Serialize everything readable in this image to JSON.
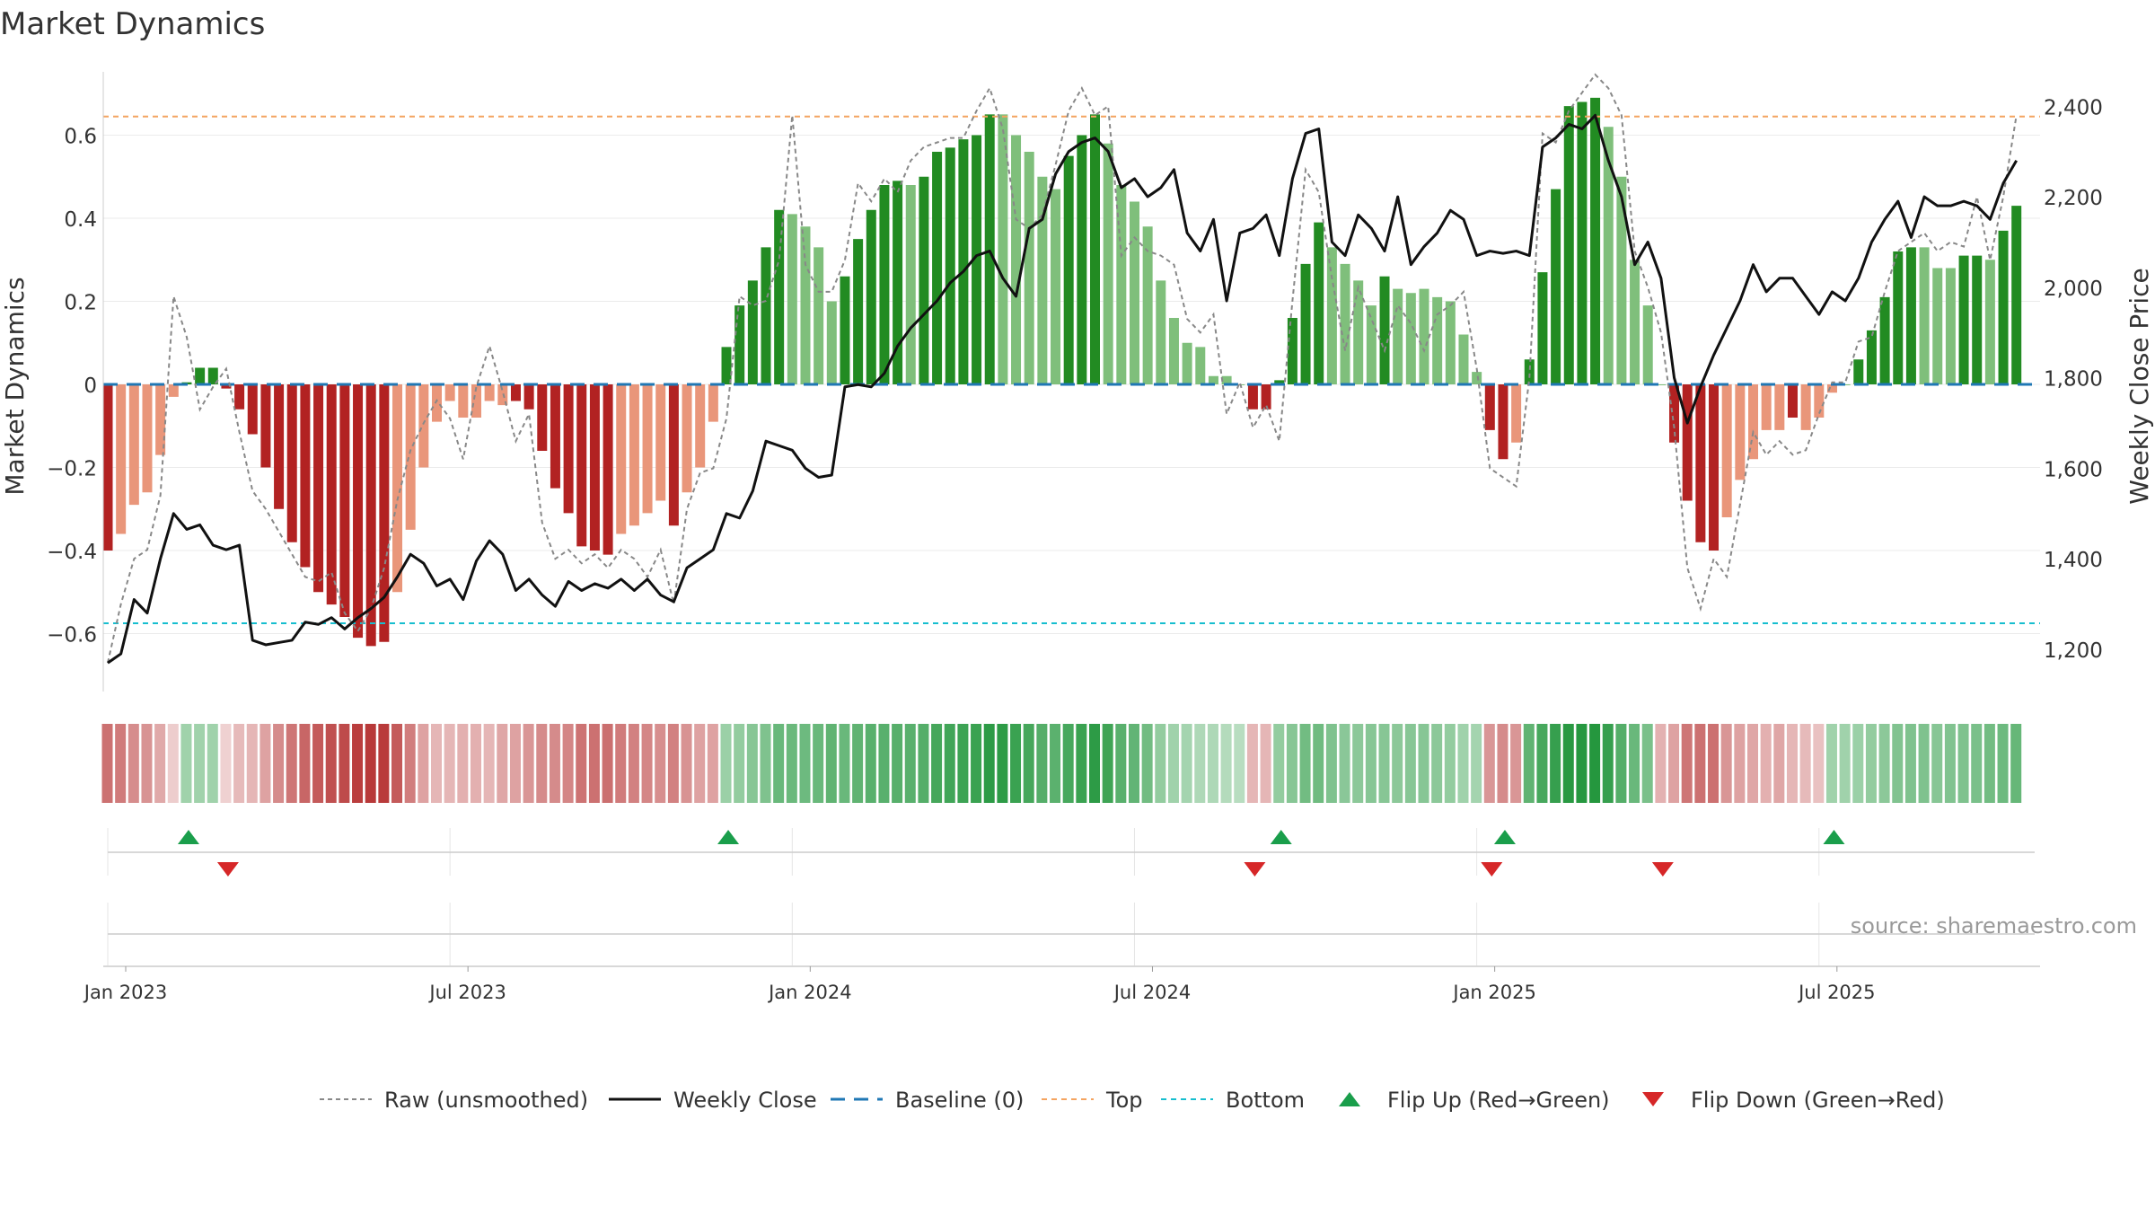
{
  "chart_data": {
    "type": "bar",
    "title": "Market Dynamics",
    "ylabel_left": "Market Dynamics",
    "ylabel_right": "Weekly Close Price",
    "source": "source: sharemaestro.com",
    "ylim_left": [
      -0.73,
      0.75
    ],
    "ylim_right": [
      1084,
      2537
    ],
    "yticks_left": [
      -0.6,
      -0.4,
      -0.2,
      0,
      0.2,
      0.4,
      0.6
    ],
    "yticks_right": [
      1200,
      1400,
      1600,
      1800,
      2000,
      2200,
      2400
    ],
    "x_tick_labels": [
      "Jan 2023",
      "Jul 2023",
      "Jan 2024",
      "Jul 2024",
      "Jan 2025",
      "Jul 2025"
    ],
    "x_tick_weeks": [
      0,
      26,
      52,
      78,
      104,
      130
    ],
    "week_start": "Jan 2023",
    "reference_lines": {
      "top": 0.645,
      "bottom": -0.575,
      "baseline": 0
    },
    "legend": [
      "Raw (unsmoothed)",
      "Weekly Close",
      "Baseline (0)",
      "Top",
      "Bottom",
      "Flip Up (Red→Green)",
      "Flip Down (Green→Red)"
    ],
    "colors": {
      "dark_green": "#228b22",
      "light_green": "#7fbf7b",
      "dark_red": "#b22222",
      "light_red": "#e9967a",
      "close": "#111111",
      "raw": "#888888",
      "baseline": "#1f77b4",
      "top": "#f4a460",
      "bottom": "#17becf",
      "flip_up": "#1a9e4b",
      "flip_down": "#d62728"
    },
    "bars": [
      -0.4,
      -0.36,
      -0.29,
      -0.26,
      -0.17,
      -0.03,
      0.005,
      0.04,
      0.04,
      -0.01,
      -0.06,
      -0.12,
      -0.2,
      -0.3,
      -0.38,
      -0.44,
      -0.5,
      -0.53,
      -0.56,
      -0.61,
      -0.63,
      -0.62,
      -0.5,
      -0.35,
      -0.2,
      -0.09,
      -0.04,
      -0.08,
      -0.08,
      -0.04,
      -0.05,
      -0.04,
      -0.06,
      -0.16,
      -0.25,
      -0.31,
      -0.39,
      -0.4,
      -0.41,
      -0.36,
      -0.34,
      -0.31,
      -0.28,
      -0.34,
      -0.26,
      -0.2,
      -0.09,
      0.09,
      0.19,
      0.25,
      0.33,
      0.42,
      0.41,
      0.38,
      0.33,
      0.2,
      0.26,
      0.35,
      0.42,
      0.48,
      0.49,
      0.48,
      0.5,
      0.56,
      0.57,
      0.59,
      0.6,
      0.65,
      0.65,
      0.6,
      0.56,
      0.5,
      0.47,
      0.55,
      0.6,
      0.65,
      0.58,
      0.48,
      0.44,
      0.38,
      0.25,
      0.16,
      0.1,
      0.09,
      0.02,
      0.02,
      0.0,
      -0.06,
      -0.06,
      0.01,
      0.16,
      0.29,
      0.39,
      0.33,
      0.29,
      0.25,
      0.19,
      0.26,
      0.23,
      0.22,
      0.23,
      0.21,
      0.2,
      0.12,
      0.03,
      -0.11,
      -0.18,
      -0.14,
      0.06,
      0.27,
      0.47,
      0.67,
      0.68,
      0.69,
      0.62,
      0.5,
      0.3,
      0.19,
      0.0,
      -0.14,
      -0.28,
      -0.38,
      -0.4,
      -0.32,
      -0.23,
      -0.18,
      -0.11,
      -0.11,
      -0.08,
      -0.11,
      -0.08,
      -0.02,
      0.0,
      0.06,
      0.13,
      0.21,
      0.32,
      0.33,
      0.33,
      0.28,
      0.28,
      0.31,
      0.31,
      0.3,
      0.37,
      0.43
    ],
    "close": [
      1170,
      1190,
      1310,
      1280,
      1400,
      1500,
      1465,
      1475,
      1430,
      1420,
      1430,
      1220,
      1210,
      1215,
      1220,
      1260,
      1255,
      1270,
      1245,
      1270,
      1290,
      1315,
      1360,
      1410,
      1390,
      1340,
      1355,
      1310,
      1395,
      1440,
      1410,
      1330,
      1355,
      1320,
      1295,
      1350,
      1330,
      1345,
      1335,
      1355,
      1330,
      1355,
      1320,
      1305,
      1380,
      1400,
      1420,
      1500,
      1490,
      1550,
      1660,
      1650,
      1640,
      1600,
      1580,
      1585,
      1780,
      1785,
      1780,
      1810,
      1870,
      1910,
      1940,
      1970,
      2010,
      2035,
      2070,
      2080,
      2020,
      1980,
      2130,
      2150,
      2250,
      2300,
      2320,
      2330,
      2300,
      2220,
      2240,
      2200,
      2220,
      2260,
      2120,
      2080,
      2150,
      1970,
      2120,
      2130,
      2160,
      2070,
      2240,
      2340,
      2350,
      2100,
      2070,
      2160,
      2130,
      2080,
      2200,
      2050,
      2090,
      2120,
      2170,
      2150,
      2070,
      2080,
      2075,
      2080,
      2070,
      2310,
      2330,
      2360,
      2350,
      2380,
      2280,
      2200,
      2050,
      2100,
      2020,
      1800,
      1700,
      1780,
      1850,
      1910,
      1970,
      2050,
      1990,
      2020,
      2020,
      1980,
      1940,
      1990,
      1970,
      2020,
      2100,
      2150,
      2190,
      2110,
      2200,
      2180,
      2180,
      2190,
      2180,
      2150,
      2230,
      2280
    ],
    "raw": [
      1170,
      1300,
      1400,
      1420,
      1540,
      1980,
      1890,
      1730,
      1780,
      1820,
      1680,
      1550,
      1510,
      1460,
      1410,
      1360,
      1350,
      1370,
      1280,
      1240,
      1290,
      1380,
      1530,
      1640,
      1700,
      1750,
      1710,
      1620,
      1780,
      1870,
      1770,
      1660,
      1720,
      1480,
      1400,
      1420,
      1390,
      1410,
      1380,
      1420,
      1400,
      1360,
      1420,
      1300,
      1510,
      1590,
      1600,
      1710,
      1980,
      1960,
      1970,
      2060,
      2380,
      2050,
      1990,
      1990,
      2060,
      2230,
      2190,
      2240,
      2210,
      2280,
      2310,
      2320,
      2330,
      2330,
      2390,
      2440,
      2350,
      2150,
      2130,
      2160,
      2270,
      2390,
      2440,
      2380,
      2400,
      2070,
      2110,
      2080,
      2070,
      2050,
      1930,
      1900,
      1940,
      1720,
      1790,
      1690,
      1740,
      1660,
      1970,
      2260,
      2210,
      2020,
      1860,
      2000,
      1930,
      1860,
      1960,
      1920,
      1860,
      1940,
      1960,
      1990,
      1820,
      1600,
      1580,
      1560,
      1800,
      2340,
      2320,
      2390,
      2430,
      2470,
      2440,
      2380,
      2080,
      2000,
      1900,
      1690,
      1380,
      1290,
      1400,
      1360,
      1520,
      1680,
      1630,
      1660,
      1630,
      1640,
      1720,
      1790,
      1790,
      1880,
      1890,
      1990,
      2080,
      2100,
      2120,
      2080,
      2100,
      2090,
      2200,
      2060,
      2200,
      2380
    ],
    "heat": [
      -0.4,
      -0.36,
      -0.29,
      -0.26,
      -0.17,
      -0.03,
      0.2,
      0.2,
      0.2,
      -0.01,
      -0.1,
      -0.12,
      -0.2,
      -0.3,
      -0.38,
      -0.44,
      -0.5,
      -0.53,
      -0.56,
      -0.61,
      -0.63,
      -0.62,
      -0.5,
      -0.35,
      -0.2,
      -0.12,
      -0.12,
      -0.15,
      -0.15,
      -0.12,
      -0.18,
      -0.2,
      -0.25,
      -0.3,
      -0.3,
      -0.31,
      -0.39,
      -0.4,
      -0.41,
      -0.36,
      -0.34,
      -0.31,
      -0.28,
      -0.34,
      -0.26,
      -0.2,
      -0.2,
      0.22,
      0.25,
      0.3,
      0.33,
      0.42,
      0.41,
      0.4,
      0.42,
      0.45,
      0.42,
      0.45,
      0.48,
      0.48,
      0.49,
      0.48,
      0.5,
      0.56,
      0.57,
      0.59,
      0.6,
      0.65,
      0.65,
      0.6,
      0.56,
      0.5,
      0.47,
      0.55,
      0.6,
      0.65,
      0.58,
      0.48,
      0.44,
      0.38,
      0.25,
      0.2,
      0.18,
      0.15,
      0.15,
      0.12,
      0.1,
      -0.12,
      -0.12,
      0.25,
      0.3,
      0.38,
      0.39,
      0.33,
      0.29,
      0.28,
      0.3,
      0.3,
      0.28,
      0.3,
      0.3,
      0.28,
      0.25,
      0.2,
      0.18,
      -0.25,
      -0.3,
      -0.25,
      0.45,
      0.55,
      0.62,
      0.67,
      0.68,
      0.69,
      0.62,
      0.5,
      0.42,
      0.35,
      -0.14,
      -0.2,
      -0.38,
      -0.4,
      -0.4,
      -0.25,
      -0.2,
      -0.18,
      -0.15,
      -0.18,
      -0.12,
      -0.1,
      -0.08,
      0.2,
      0.2,
      0.22,
      0.25,
      0.28,
      0.32,
      0.33,
      0.33,
      0.3,
      0.32,
      0.33,
      0.35,
      0.38,
      0.4,
      0.43
    ],
    "flip_up_weeks": [
      6,
      47,
      89,
      106,
      131
    ],
    "flip_down_weeks": [
      9,
      87,
      105,
      118
    ],
    "bar_light_flags": [
      0,
      1,
      1,
      1,
      1,
      1,
      0,
      0,
      0,
      0,
      0,
      0,
      0,
      0,
      0,
      0,
      0,
      0,
      0,
      0,
      0,
      0,
      1,
      1,
      1,
      1,
      1,
      1,
      1,
      1,
      1,
      0,
      0,
      0,
      0,
      0,
      0,
      0,
      0,
      1,
      1,
      1,
      1,
      0,
      1,
      1,
      1,
      0,
      0,
      0,
      0,
      0,
      1,
      1,
      1,
      1,
      0,
      0,
      0,
      0,
      0,
      1,
      0,
      0,
      0,
      0,
      0,
      0,
      1,
      1,
      1,
      1,
      1,
      0,
      0,
      0,
      1,
      1,
      1,
      1,
      1,
      1,
      1,
      1,
      1,
      1,
      1,
      0,
      0,
      0,
      0,
      0,
      0,
      1,
      1,
      1,
      1,
      0,
      1,
      1,
      1,
      1,
      1,
      1,
      1,
      0,
      0,
      1,
      0,
      0,
      0,
      0,
      0,
      0,
      1,
      1,
      1,
      1,
      1,
      0,
      0,
      0,
      0,
      1,
      1,
      1,
      1,
      1,
      0,
      1,
      1,
      1,
      1,
      0,
      0,
      0,
      0,
      0,
      1,
      1,
      1,
      0,
      0,
      1,
      0
    ]
  }
}
